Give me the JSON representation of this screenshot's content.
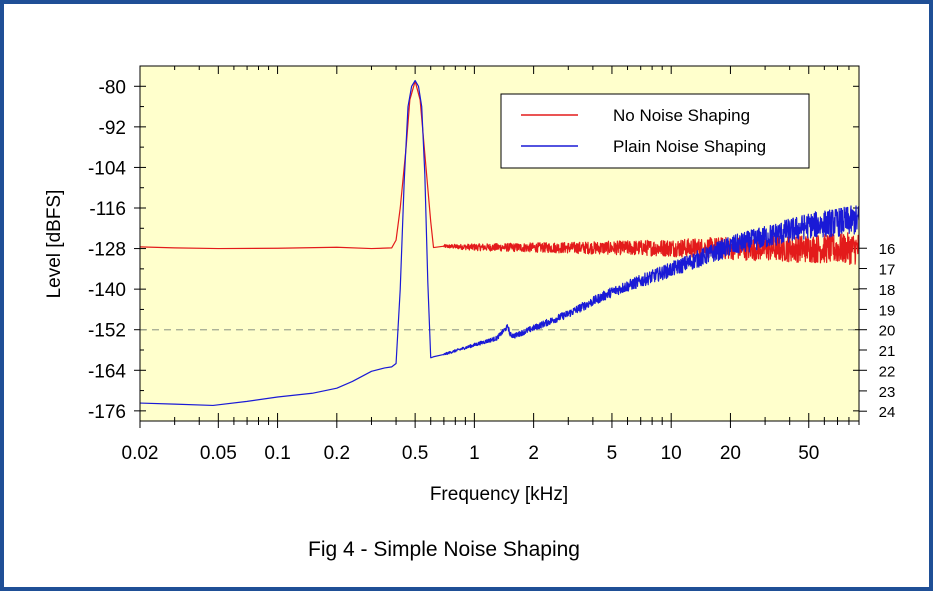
{
  "colors": {
    "frame_border": "#1f4f96",
    "plot_background": "#ffffcc",
    "no_noise_shaping": "#e31b1b",
    "plain_noise_shaping": "#1a1ad6",
    "reference_line": "#a0a890"
  },
  "chart_data": {
    "type": "line",
    "caption": "Fig 4 - Simple Noise Shaping",
    "xlabel": "Frequency [kHz]",
    "ylabel": "Level [dBFS]",
    "x_scale": "log",
    "xlim": [
      0.02,
      90
    ],
    "ylim": [
      -179,
      -74
    ],
    "x_ticks": [
      {
        "value": 0.02,
        "label": "0.02"
      },
      {
        "value": 0.05,
        "label": "0.05"
      },
      {
        "value": 0.1,
        "label": "0.1"
      },
      {
        "value": 0.2,
        "label": "0.2"
      },
      {
        "value": 0.5,
        "label": "0.5"
      },
      {
        "value": 1,
        "label": "1"
      },
      {
        "value": 2,
        "label": "2"
      },
      {
        "value": 5,
        "label": "5"
      },
      {
        "value": 10,
        "label": "10"
      },
      {
        "value": 20,
        "label": "20"
      },
      {
        "value": 50,
        "label": "50"
      }
    ],
    "y_ticks": [
      {
        "value": -80,
        "label": "-80"
      },
      {
        "value": -92,
        "label": "-92"
      },
      {
        "value": -104,
        "label": "-104"
      },
      {
        "value": -116,
        "label": "-116"
      },
      {
        "value": -128,
        "label": "-128"
      },
      {
        "value": -140,
        "label": "-140"
      },
      {
        "value": -152,
        "label": "-152"
      },
      {
        "value": -164,
        "label": "-164"
      },
      {
        "value": -176,
        "label": "-176"
      }
    ],
    "right_ticks": [
      {
        "value": -127.9,
        "label": "16"
      },
      {
        "value": -133.9,
        "label": "17"
      },
      {
        "value": -139.9,
        "label": "18"
      },
      {
        "value": -146.0,
        "label": "19"
      },
      {
        "value": -152.0,
        "label": "20"
      },
      {
        "value": -158.0,
        "label": "21"
      },
      {
        "value": -164.0,
        "label": "22"
      },
      {
        "value": -170.1,
        "label": "23"
      },
      {
        "value": -176.1,
        "label": "24"
      }
    ],
    "reference_line": {
      "y": -152,
      "style": "dashed"
    },
    "legend_position": "top-right",
    "grid": false,
    "series": [
      {
        "name": "No Noise Shaping",
        "color": "#e31b1b",
        "x": [
          0.02,
          0.03,
          0.05,
          0.1,
          0.2,
          0.3,
          0.38,
          0.4,
          0.42,
          0.45,
          0.47,
          0.5,
          0.53,
          0.56,
          0.6,
          0.62,
          0.7,
          1,
          2,
          5,
          10,
          20,
          50,
          90
        ],
        "y": [
          -127.5,
          -127.8,
          -128.0,
          -127.9,
          -127.6,
          -128.0,
          -127.8,
          -125.5,
          -116,
          -98,
          -84,
          -78.5,
          -84,
          -100,
          -120,
          -127.7,
          -127.3,
          -127.6,
          -127.7,
          -127.8,
          -127.8,
          -127.9,
          -128.0,
          -128.0
        ],
        "noise_band_db": [
          [
            0.7,
            0.5
          ],
          [
            1,
            1.0
          ],
          [
            2,
            1.4
          ],
          [
            5,
            2.0
          ],
          [
            10,
            2.6
          ],
          [
            20,
            3.4
          ],
          [
            50,
            4.2
          ],
          [
            90,
            4.8
          ]
        ]
      },
      {
        "name": "Plain Noise Shaping",
        "color": "#1a1ad6",
        "x": [
          0.02,
          0.03,
          0.047,
          0.07,
          0.1,
          0.15,
          0.2,
          0.24,
          0.3,
          0.35,
          0.38,
          0.4,
          0.42,
          0.44,
          0.46,
          0.48,
          0.5,
          0.52,
          0.54,
          0.56,
          0.58,
          0.6,
          0.62,
          0.7,
          1,
          1.3,
          1.48,
          1.52,
          1.6,
          2,
          3,
          5,
          10,
          20,
          50,
          90
        ],
        "y": [
          -173.7,
          -174.0,
          -174.4,
          -173.2,
          -171.9,
          -170.8,
          -169.3,
          -167.3,
          -164.3,
          -163.3,
          -163.0,
          -162.0,
          -140,
          -108,
          -86,
          -80,
          -78.3,
          -80,
          -86,
          -106,
          -138,
          -160.3,
          -160.0,
          -159.3,
          -156.5,
          -154.5,
          -151.0,
          -153.5,
          -153.8,
          -151.5,
          -147.3,
          -140.8,
          -134.2,
          -127.3,
          -121.2,
          -119.5
        ],
        "noise_band_db": [
          [
            0.7,
            0.3
          ],
          [
            1,
            0.5
          ],
          [
            2,
            0.9
          ],
          [
            5,
            1.5
          ],
          [
            10,
            2.2
          ],
          [
            20,
            3.0
          ],
          [
            50,
            3.8
          ],
          [
            90,
            4.5
          ]
        ]
      }
    ]
  }
}
